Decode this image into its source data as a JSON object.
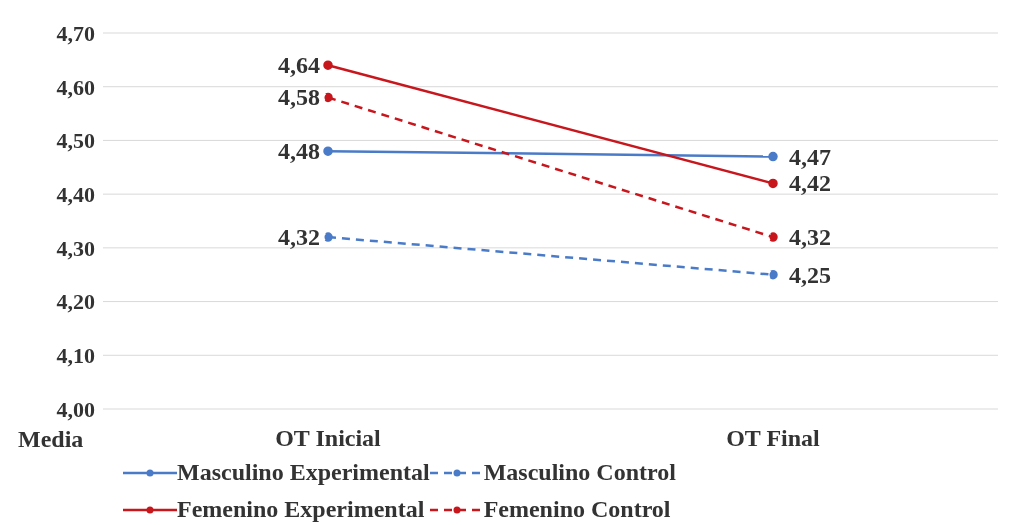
{
  "chart_data": {
    "type": "line",
    "ylabel": "Media",
    "categories": [
      "OT Inicial",
      "OT Final"
    ],
    "series": [
      {
        "name": "Masculino Experimental",
        "color": "#4a7bc8",
        "values": [
          4.48,
          4.47
        ],
        "value_labels": [
          "4,48",
          "4,47"
        ],
        "line_style": "solid"
      },
      {
        "name": "Masculino Control",
        "color": "#4a7bc8",
        "values": [
          4.32,
          4.25
        ],
        "value_labels": [
          "4,32",
          "4,25"
        ],
        "line_style": "dashed"
      },
      {
        "name": "Femenino Experimental",
        "color": "#c8161d",
        "values": [
          4.64,
          4.42
        ],
        "value_labels": [
          "4,64",
          "4,42"
        ],
        "line_style": "solid"
      },
      {
        "name": "Femenino Control",
        "color": "#c8161d",
        "values": [
          4.58,
          4.32
        ],
        "value_labels": [
          "4,58",
          "4,32"
        ],
        "line_style": "dashed"
      }
    ],
    "ylim": [
      4.0,
      4.7
    ],
    "yticks": [
      {
        "value": 4.0,
        "label": "4,00"
      },
      {
        "value": 4.1,
        "label": "4,10"
      },
      {
        "value": 4.2,
        "label": "4,20"
      },
      {
        "value": 4.3,
        "label": "4,30"
      },
      {
        "value": 4.4,
        "label": "4,40"
      },
      {
        "value": 4.5,
        "label": "4,50"
      },
      {
        "value": 4.6,
        "label": "4,60"
      },
      {
        "value": 4.7,
        "label": "4,70"
      }
    ],
    "grid": "y",
    "legend": "bottom",
    "marker": "circle"
  }
}
